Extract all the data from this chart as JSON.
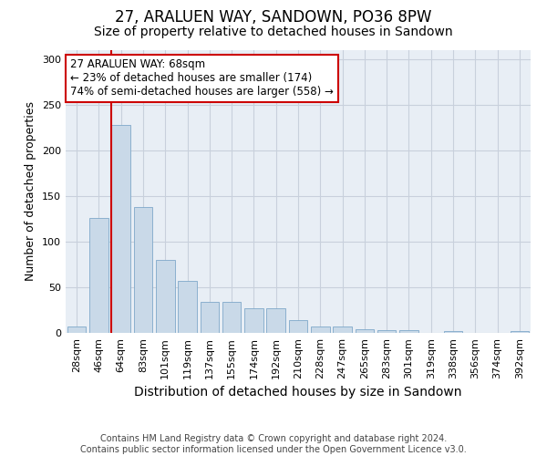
{
  "title": "27, ARALUEN WAY, SANDOWN, PO36 8PW",
  "subtitle": "Size of property relative to detached houses in Sandown",
  "xlabel": "Distribution of detached houses by size in Sandown",
  "ylabel": "Number of detached properties",
  "categories": [
    "28sqm",
    "46sqm",
    "64sqm",
    "83sqm",
    "101sqm",
    "119sqm",
    "137sqm",
    "155sqm",
    "174sqm",
    "192sqm",
    "210sqm",
    "228sqm",
    "247sqm",
    "265sqm",
    "283sqm",
    "301sqm",
    "319sqm",
    "338sqm",
    "356sqm",
    "374sqm",
    "392sqm"
  ],
  "values": [
    7,
    126,
    228,
    138,
    80,
    57,
    34,
    34,
    27,
    27,
    14,
    7,
    7,
    4,
    3,
    3,
    0,
    2,
    0,
    0,
    2
  ],
  "bar_color": "#c9d9e8",
  "bar_edge_color": "#7fa8c9",
  "annotation_text": "27 ARALUEN WAY: 68sqm\n← 23% of detached houses are smaller (174)\n74% of semi-detached houses are larger (558) →",
  "annotation_box_color": "#ffffff",
  "annotation_box_edge_color": "#cc0000",
  "vline_color": "#cc0000",
  "vline_x": 1.575,
  "ylim": [
    0,
    310
  ],
  "yticks": [
    0,
    50,
    100,
    150,
    200,
    250,
    300
  ],
  "grid_color": "#c8d0dc",
  "bg_color": "#e8eef5",
  "footer_text": "Contains HM Land Registry data © Crown copyright and database right 2024.\nContains public sector information licensed under the Open Government Licence v3.0.",
  "title_fontsize": 12,
  "subtitle_fontsize": 10,
  "ylabel_fontsize": 9,
  "xlabel_fontsize": 10,
  "tick_fontsize": 8,
  "annotation_fontsize": 8.5,
  "footer_fontsize": 7
}
